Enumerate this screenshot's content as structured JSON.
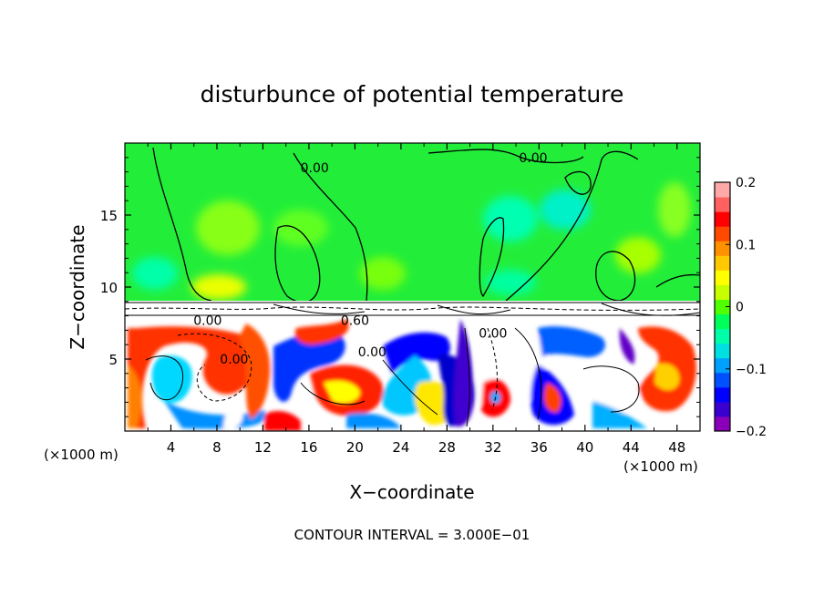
{
  "chart_data": {
    "type": "heatmap",
    "title": "disturbunce of potential temperature",
    "xlabel": "X−coordinate",
    "ylabel": "Z−coordinate",
    "x_unit_left": "(×1000 m)",
    "x_unit_right": "(×1000 m)",
    "xlim": [
      0,
      50
    ],
    "ylim": [
      0,
      20
    ],
    "x_ticks": [
      4,
      8,
      12,
      16,
      20,
      24,
      28,
      32,
      36,
      40,
      44,
      48
    ],
    "y_ticks": [
      5,
      10,
      15
    ],
    "colorbar": {
      "min": -0.2,
      "max": 0.2,
      "tick_values": [
        0.2,
        0.1,
        0,
        -0.1,
        -0.2
      ],
      "tick_labels": [
        "0.2",
        "0.1",
        "0",
        "−0.1",
        "−0.2"
      ],
      "colors": [
        "#8a00b8",
        "#3a00d0",
        "#0000ff",
        "#0050ff",
        "#00a0ff",
        "#00e0e0",
        "#00ffa8",
        "#00ff5a",
        "#50ff00",
        "#c8ff00",
        "#ffff00",
        "#ffc800",
        "#ff9000",
        "#ff4800",
        "#ff0000",
        "#ff6060",
        "#ffa8a8"
      ]
    },
    "contour_labels": [
      {
        "text": "0.00",
        "x": 16.5,
        "y": 18.3
      },
      {
        "text": "0.00",
        "x": 35.5,
        "y": 19.0
      },
      {
        "text": "0.00",
        "x": 7.2,
        "y": 7.7
      },
      {
        "text": "0.60",
        "x": 20.0,
        "y": 7.7
      },
      {
        "text": "0.00",
        "x": 21.5,
        "y": 5.5
      },
      {
        "text": "0.00",
        "x": 9.5,
        "y": 5.0
      },
      {
        "text": "0.00",
        "x": 32.0,
        "y": 6.8
      }
    ],
    "annotation": "CONTOUR INTERVAL = 3.000E−01"
  }
}
